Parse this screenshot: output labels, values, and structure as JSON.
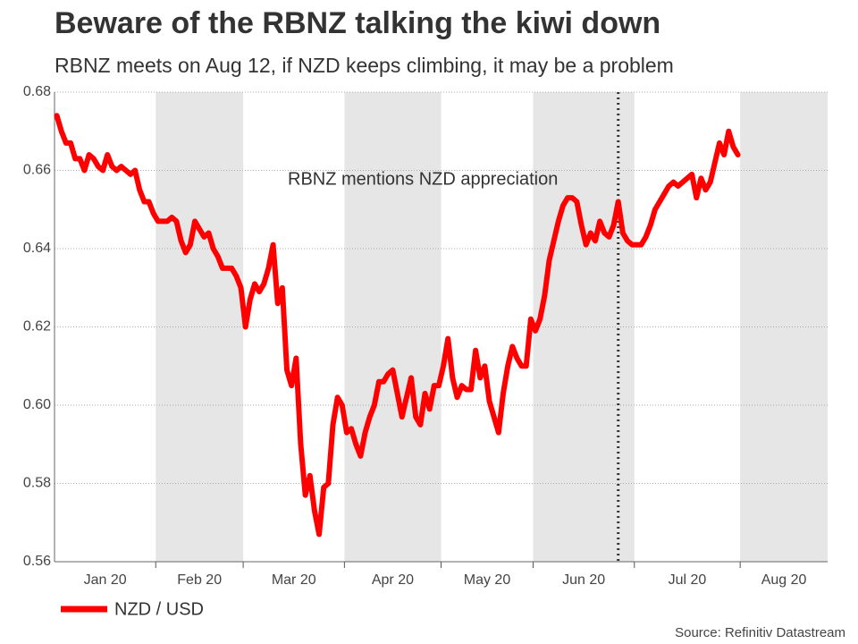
{
  "chart_data": {
    "type": "line",
    "title": "Beware of the RBNZ talking the kiwi down",
    "subtitle": "RBNZ meets on Aug 12, if NZD keeps climbing, it may be a problem",
    "source": "Source: Refinitiv Datastream",
    "annotation": "RBNZ mentions NZD appreciation",
    "categories": [
      "Jan 20",
      null,
      null,
      null,
      null,
      null,
      null,
      null,
      null,
      null,
      null,
      null,
      null,
      null,
      null,
      null,
      null,
      null,
      null,
      null,
      null,
      null,
      "Feb 20",
      null,
      null,
      null,
      null,
      null,
      null,
      null,
      null,
      null,
      null,
      null,
      null,
      null,
      null,
      null,
      null,
      null,
      null,
      "Mar 20",
      null,
      null,
      null,
      null,
      null,
      null,
      null,
      null,
      null,
      null,
      null,
      null,
      null,
      null,
      null,
      null,
      null,
      null,
      null,
      null,
      null,
      "Apr 20",
      null,
      null,
      null,
      null,
      null,
      null,
      null,
      null,
      null,
      null,
      null,
      null,
      null,
      null,
      null,
      null,
      null,
      null,
      null,
      null,
      "May 20",
      null,
      null,
      null,
      null,
      null,
      null,
      null,
      null,
      null,
      null,
      null,
      null,
      null,
      null,
      null,
      null,
      null,
      null,
      null,
      "Jun 20",
      null,
      null,
      null,
      null,
      null,
      null,
      null,
      null,
      null,
      null,
      null,
      null,
      null,
      null,
      null,
      null,
      null,
      null,
      null,
      null,
      null,
      "Jul 20",
      null,
      null,
      null,
      null,
      null,
      null,
      null,
      null,
      null,
      null,
      null,
      null,
      null,
      null,
      null,
      null,
      null,
      null,
      null,
      null,
      null,
      null,
      "Aug 20",
      null,
      null,
      null,
      null,
      null,
      null,
      null,
      null,
      null,
      null,
      null,
      null,
      null,
      null,
      null,
      null,
      null,
      null
    ],
    "series": [
      {
        "name": "NZD / USD",
        "color": "#ff0000",
        "values": [
          0.674,
          0.67,
          0.667,
          0.667,
          0.663,
          0.663,
          0.66,
          0.664,
          0.663,
          0.661,
          0.66,
          0.664,
          0.661,
          0.66,
          0.661,
          0.66,
          0.659,
          0.66,
          0.655,
          0.652,
          0.652,
          0.649,
          0.647,
          0.647,
          0.647,
          0.648,
          0.647,
          0.642,
          0.639,
          0.641,
          0.647,
          0.645,
          0.643,
          0.644,
          0.64,
          0.638,
          0.635,
          0.635,
          0.635,
          0.633,
          0.63,
          0.62,
          0.627,
          0.631,
          0.629,
          0.631,
          0.635,
          0.641,
          0.626,
          0.63,
          0.609,
          0.605,
          0.612,
          0.59,
          0.577,
          0.582,
          0.573,
          0.567,
          0.579,
          0.58,
          0.595,
          0.602,
          0.6,
          0.593,
          0.594,
          0.59,
          0.587,
          0.593,
          0.597,
          0.6,
          0.606,
          0.606,
          0.608,
          0.609,
          0.603,
          0.597,
          0.602,
          0.607,
          0.597,
          0.595,
          0.603,
          0.599,
          0.605,
          0.605,
          0.61,
          0.617,
          0.607,
          0.602,
          0.605,
          0.604,
          0.604,
          0.614,
          0.607,
          0.61,
          0.601,
          0.597,
          0.593,
          0.603,
          0.61,
          0.615,
          0.612,
          0.61,
          0.61,
          0.622,
          0.619,
          0.622,
          0.628,
          0.637,
          0.642,
          0.647,
          0.651,
          0.653,
          0.653,
          0.652,
          0.646,
          0.641,
          0.644,
          0.642,
          0.647,
          0.644,
          0.643,
          0.646,
          0.652,
          0.644,
          0.642,
          0.641,
          0.641,
          0.641,
          0.643,
          0.646,
          0.65,
          0.652,
          0.654,
          0.656,
          0.657,
          0.656,
          0.657,
          0.658,
          0.659,
          0.653,
          0.658,
          0.655,
          0.657,
          0.662,
          0.667,
          0.664,
          0.67,
          0.666,
          0.664,
          null,
          null,
          null,
          null,
          null,
          null,
          null,
          null,
          null,
          null,
          null,
          null,
          null,
          null,
          null,
          null,
          null,
          null,
          null
        ]
      }
    ],
    "ylim": [
      0.56,
      0.68
    ],
    "yticks": [
      {
        "value": 0.56,
        "label": "0.56"
      },
      {
        "value": 0.58,
        "label": "0.58"
      },
      {
        "value": 0.6,
        "label": "0.60"
      },
      {
        "value": 0.62,
        "label": "0.62"
      },
      {
        "value": 0.64,
        "label": "0.64"
      },
      {
        "value": 0.66,
        "label": "0.66"
      },
      {
        "value": 0.68,
        "label": "0.68"
      }
    ],
    "grid": true,
    "legend": "bottom-left"
  }
}
